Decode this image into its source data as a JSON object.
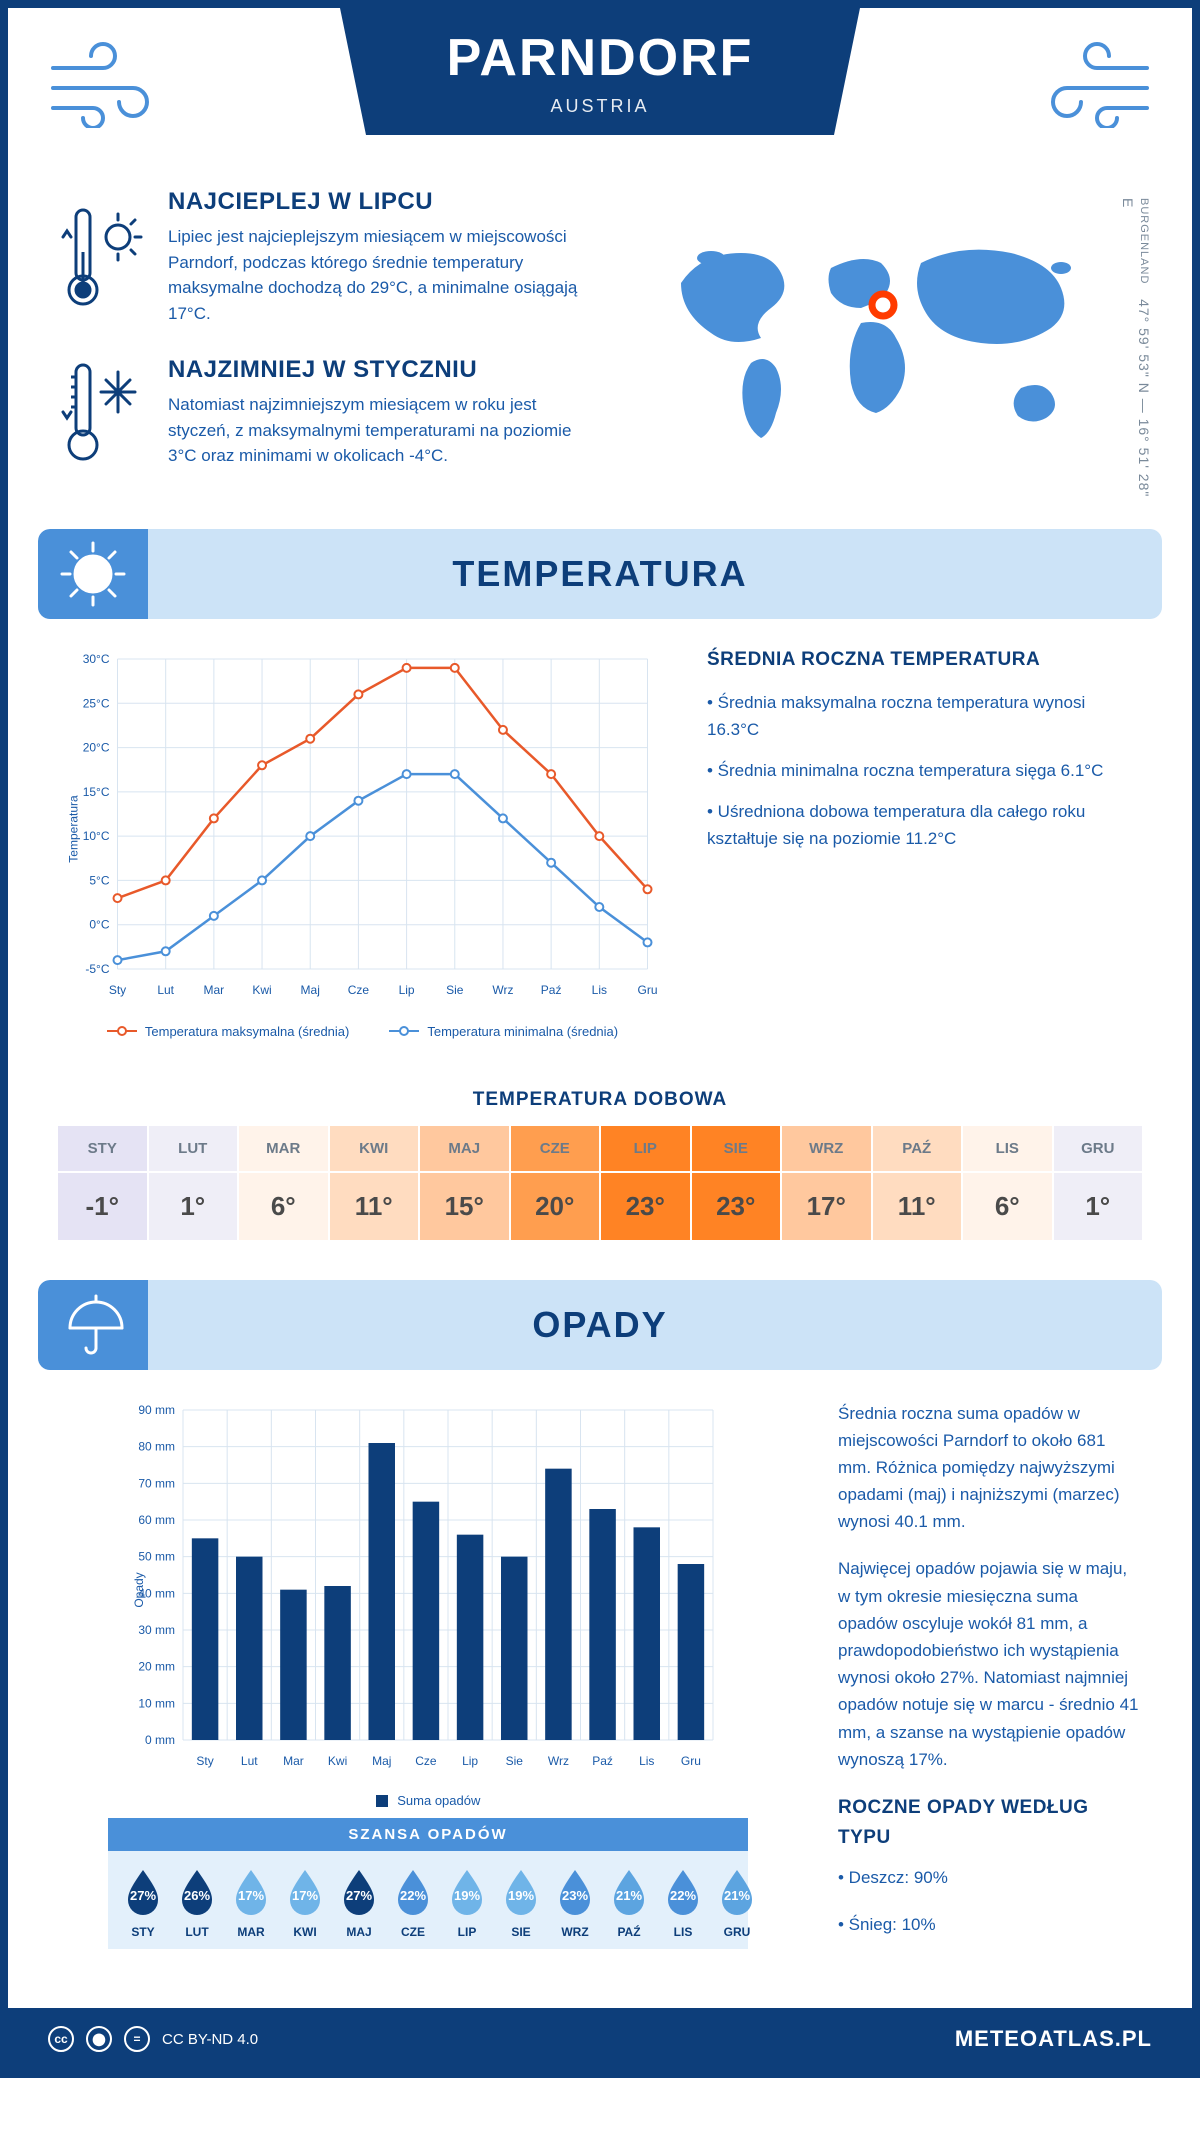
{
  "header": {
    "city": "PARNDORF",
    "country": "AUSTRIA"
  },
  "coords": {
    "lat_lon": "47° 59' 53\" N — 16° 51' 28\" E",
    "region": "BURGENLAND"
  },
  "facts": {
    "warm": {
      "title": "NAJCIEPLEJ W LIPCU",
      "body": "Lipiec jest najcieplejszym miesiącem w miejscowości Parndorf, podczas którego średnie temperatury maksymalne dochodzą do 29°C, a minimalne osiągają 17°C."
    },
    "cold": {
      "title": "NAJZIMNIEJ W STYCZNIU",
      "body": "Natomiast najzimniejszym miesiącem w roku jest styczeń, z maksymalnymi temperaturami na poziomie 3°C oraz minimami w okolicach -4°C."
    }
  },
  "months_short": [
    "Sty",
    "Lut",
    "Mar",
    "Kwi",
    "Maj",
    "Cze",
    "Lip",
    "Sie",
    "Wrz",
    "Paź",
    "Lis",
    "Gru"
  ],
  "months_upper": [
    "STY",
    "LUT",
    "MAR",
    "KWI",
    "MAJ",
    "CZE",
    "LIP",
    "SIE",
    "WRZ",
    "PAŹ",
    "LIS",
    "GRU"
  ],
  "temp_section": {
    "title": "TEMPERATURA",
    "chart": {
      "type": "line",
      "ylabel": "Temperatura",
      "ylim": [
        -5,
        30
      ],
      "ytick_step": 5,
      "ytick_suffix": "°C",
      "series_max": {
        "label": "Temperatura maksymalna (średnia)",
        "color": "#e8592a",
        "values": [
          3,
          5,
          12,
          18,
          21,
          26,
          29,
          29,
          22,
          17,
          10,
          4
        ]
      },
      "series_min": {
        "label": "Temperatura minimalna (średnia)",
        "color": "#4a90d9",
        "values": [
          -4,
          -3,
          1,
          5,
          10,
          14,
          17,
          17,
          12,
          7,
          2,
          -2
        ]
      },
      "grid_color": "#d8e4f0",
      "background": "#ffffff"
    },
    "avg_title": "ŚREDNIA ROCZNA TEMPERATURA",
    "bullets": [
      "• Średnia maksymalna roczna temperatura wynosi 16.3°C",
      "• Średnia minimalna roczna temperatura sięga 6.1°C",
      "• Uśredniona dobowa temperatura dla całego roku kształtuje się na poziomie 11.2°C"
    ],
    "daily_title": "TEMPERATURA DOBOWA",
    "daily_values": [
      "-1°",
      "1°",
      "6°",
      "11°",
      "15°",
      "20°",
      "23°",
      "23°",
      "17°",
      "11°",
      "6°",
      "1°"
    ],
    "daily_colors": [
      "#e5e3f4",
      "#efeef7",
      "#fff3ea",
      "#ffdcc0",
      "#ffc89e",
      "#ff9e4f",
      "#ff8324",
      "#ff8324",
      "#ffc89e",
      "#ffdcc0",
      "#fff3ea",
      "#efeef7"
    ]
  },
  "precip_section": {
    "title": "OPADY",
    "chart": {
      "type": "bar",
      "ylabel": "Opady",
      "ylim": [
        0,
        90
      ],
      "ytick_step": 10,
      "ytick_suffix": " mm",
      "series": {
        "label": "Suma opadów",
        "color": "#0d3e7a",
        "values": [
          55,
          50,
          41,
          42,
          81,
          65,
          56,
          50,
          74,
          63,
          58,
          48
        ]
      },
      "grid_color": "#d8e4f0"
    },
    "para1": "Średnia roczna suma opadów w miejscowości Parndorf to około 681 mm. Różnica pomiędzy najwyższymi opadami (maj) i najniższymi (marzec) wynosi 40.1 mm.",
    "para2": "Najwięcej opadów pojawia się w maju, w tym okresie miesięczna suma opadów oscyluje wokół 81 mm, a prawdopodobieństwo ich wystąpienia wynosi około 27%. Natomiast najmniej opadów notuje się w marcu - średnio 41 mm, a szanse na wystąpienie opadów wynoszą 17%.",
    "type_title": "ROCZNE OPADY WEDŁUG TYPU",
    "type_rain": "• Deszcz: 90%",
    "type_snow": "• Śnieg: 10%",
    "chance_title": "SZANSA OPADÓW",
    "chance_values": [
      27,
      26,
      17,
      17,
      27,
      22,
      19,
      19,
      23,
      21,
      22,
      21
    ],
    "chance_colors": [
      "#0d3e7a",
      "#0d3e7a",
      "#6fb4e8",
      "#6fb4e8",
      "#0d3e7a",
      "#4a90d9",
      "#6fb4e8",
      "#6fb4e8",
      "#4a90d9",
      "#5ca4e0",
      "#4a90d9",
      "#5ca4e0"
    ]
  },
  "footer": {
    "license": "CC BY-ND 4.0",
    "brand": "METEOATLAS.PL"
  }
}
